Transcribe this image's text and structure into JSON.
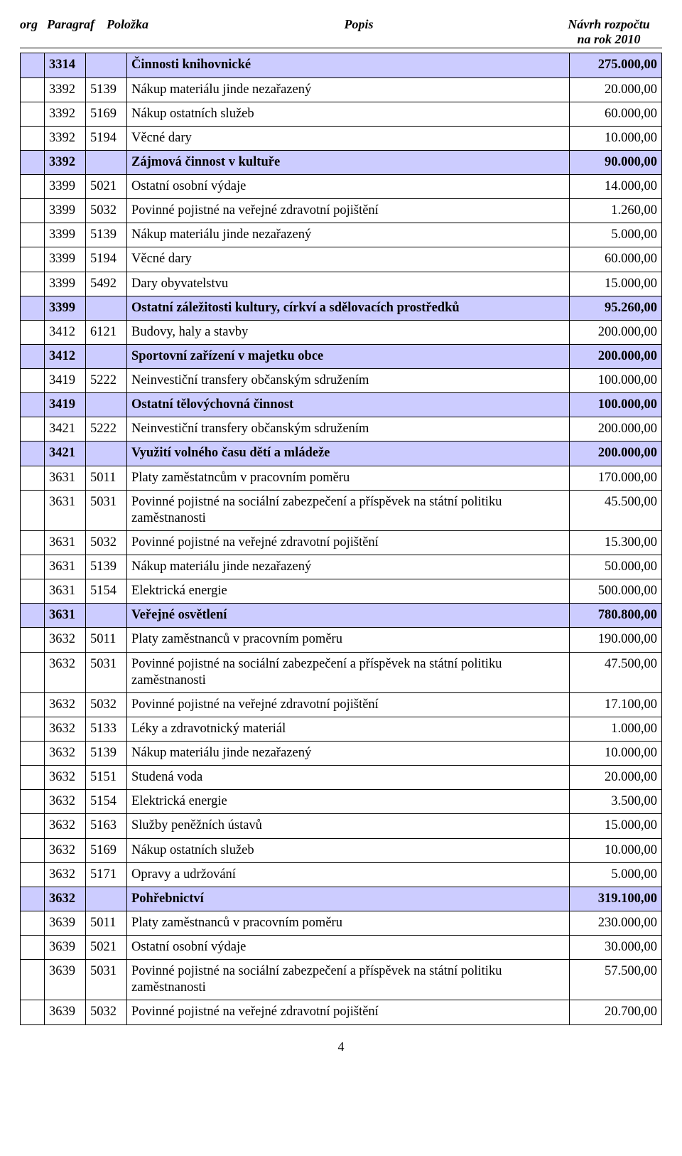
{
  "header": {
    "org": "org",
    "paragraf": "Paragraf",
    "polozka": "Položka",
    "popis": "Popis",
    "navrh_l1": "Návrh rozpočtu",
    "navrh_l2": "na rok 2010"
  },
  "page_number": "4",
  "rows": [
    {
      "hl": true,
      "par": "3314",
      "pol": "",
      "pop": "Činnosti knihovnické",
      "amt": "275.000,00"
    },
    {
      "hl": false,
      "par": "3392",
      "pol": "5139",
      "pop": "Nákup materiálu jinde nezařazený",
      "amt": "20.000,00"
    },
    {
      "hl": false,
      "par": "3392",
      "pol": "5169",
      "pop": "Nákup ostatních služeb",
      "amt": "60.000,00"
    },
    {
      "hl": false,
      "par": "3392",
      "pol": "5194",
      "pop": "Věcné dary",
      "amt": "10.000,00"
    },
    {
      "hl": true,
      "par": "3392",
      "pol": "",
      "pop": "Zájmová činnost v kultuře",
      "amt": "90.000,00"
    },
    {
      "hl": false,
      "par": "3399",
      "pol": "5021",
      "pop": "Ostatní osobní výdaje",
      "amt": "14.000,00"
    },
    {
      "hl": false,
      "par": "3399",
      "pol": "5032",
      "pop": "Povinné pojistné na veřejné zdravotní pojištění",
      "amt": "1.260,00"
    },
    {
      "hl": false,
      "par": "3399",
      "pol": "5139",
      "pop": "Nákup materiálu jinde nezařazený",
      "amt": "5.000,00"
    },
    {
      "hl": false,
      "par": "3399",
      "pol": "5194",
      "pop": "Věcné dary",
      "amt": "60.000,00"
    },
    {
      "hl": false,
      "par": "3399",
      "pol": "5492",
      "pop": "Dary obyvatelstvu",
      "amt": "15.000,00"
    },
    {
      "hl": true,
      "par": "3399",
      "pol": "",
      "pop": "Ostatní záležitosti kultury, církví a sdělovacích prostředků",
      "amt": "95.260,00"
    },
    {
      "hl": false,
      "par": "3412",
      "pol": "6121",
      "pop": "Budovy, haly a stavby",
      "amt": "200.000,00"
    },
    {
      "hl": true,
      "par": "3412",
      "pol": "",
      "pop": "Sportovní zařízení v majetku obce",
      "amt": "200.000,00"
    },
    {
      "hl": false,
      "par": "3419",
      "pol": "5222",
      "pop": "Neinvestiční transfery občanským sdružením",
      "amt": "100.000,00"
    },
    {
      "hl": true,
      "par": "3419",
      "pol": "",
      "pop": "Ostatní tělovýchovná činnost",
      "amt": "100.000,00"
    },
    {
      "hl": false,
      "par": "3421",
      "pol": "5222",
      "pop": "Neinvestiční transfery občanským sdružením",
      "amt": "200.000,00"
    },
    {
      "hl": true,
      "par": "3421",
      "pol": "",
      "pop": "Využití volného času dětí a mládeže",
      "amt": "200.000,00"
    },
    {
      "hl": false,
      "par": "3631",
      "pol": "5011",
      "pop": "Platy  zaměstatncům v pracovním poměru",
      "amt": "170.000,00"
    },
    {
      "hl": false,
      "par": "3631",
      "pol": "5031",
      "pop": "Povinné pojistné na sociální zabezpečení a příspěvek na státní politiku zaměstnanosti",
      "amt": "45.500,00"
    },
    {
      "hl": false,
      "par": "3631",
      "pol": "5032",
      "pop": "Povinné pojistné na veřejné zdravotní pojištění",
      "amt": "15.300,00"
    },
    {
      "hl": false,
      "par": "3631",
      "pol": "5139",
      "pop": "Nákup materiálu jinde nezařazený",
      "amt": "50.000,00"
    },
    {
      "hl": false,
      "par": "3631",
      "pol": "5154",
      "pop": "Elektrická energie",
      "amt": "500.000,00"
    },
    {
      "hl": true,
      "par": "3631",
      "pol": "",
      "pop": "Veřejné osvětlení",
      "amt": "780.800,00"
    },
    {
      "hl": false,
      "par": "3632",
      "pol": "5011",
      "pop": "Platy zaměstnanců v pracovním poměru",
      "amt": "190.000,00"
    },
    {
      "hl": false,
      "par": "3632",
      "pol": "5031",
      "pop": "Povinné pojistné na sociální zabezpečení a příspěvek na státní politiku zaměstnanosti",
      "amt": "47.500,00"
    },
    {
      "hl": false,
      "par": "3632",
      "pol": "5032",
      "pop": "Povinné pojistné na veřejné zdravotní pojištění",
      "amt": "17.100,00"
    },
    {
      "hl": false,
      "par": "3632",
      "pol": "5133",
      "pop": "Léky a zdravotnický materiál",
      "amt": "1.000,00"
    },
    {
      "hl": false,
      "par": "3632",
      "pol": "5139",
      "pop": "Nákup materiálu jinde nezařazený",
      "amt": "10.000,00"
    },
    {
      "hl": false,
      "par": "3632",
      "pol": "5151",
      "pop": "Studená voda",
      "amt": "20.000,00"
    },
    {
      "hl": false,
      "par": "3632",
      "pol": "5154",
      "pop": "Elektrická energie",
      "amt": "3.500,00"
    },
    {
      "hl": false,
      "par": "3632",
      "pol": "5163",
      "pop": "Služby peněžních ústavů",
      "amt": "15.000,00"
    },
    {
      "hl": false,
      "par": "3632",
      "pol": "5169",
      "pop": "Nákup ostatních služeb",
      "amt": "10.000,00"
    },
    {
      "hl": false,
      "par": "3632",
      "pol": "5171",
      "pop": "Opravy a udržování",
      "amt": "5.000,00"
    },
    {
      "hl": true,
      "par": "3632",
      "pol": "",
      "pop": "Pohřebnictví",
      "amt": "319.100,00"
    },
    {
      "hl": false,
      "par": "3639",
      "pol": "5011",
      "pop": "Platy zaměstnanců v pracovním poměru",
      "amt": "230.000,00"
    },
    {
      "hl": false,
      "par": "3639",
      "pol": "5021",
      "pop": "Ostatní osobní výdaje",
      "amt": "30.000,00"
    },
    {
      "hl": false,
      "par": "3639",
      "pol": "5031",
      "pop": "Povinné pojistné na sociální zabezpečení a příspěvek na státní politiku zaměstnanosti",
      "amt": "57.500,00"
    },
    {
      "hl": false,
      "par": "3639",
      "pol": "5032",
      "pop": "Povinné pojistné na veřejné zdravotní pojištění",
      "amt": "20.700,00"
    }
  ]
}
